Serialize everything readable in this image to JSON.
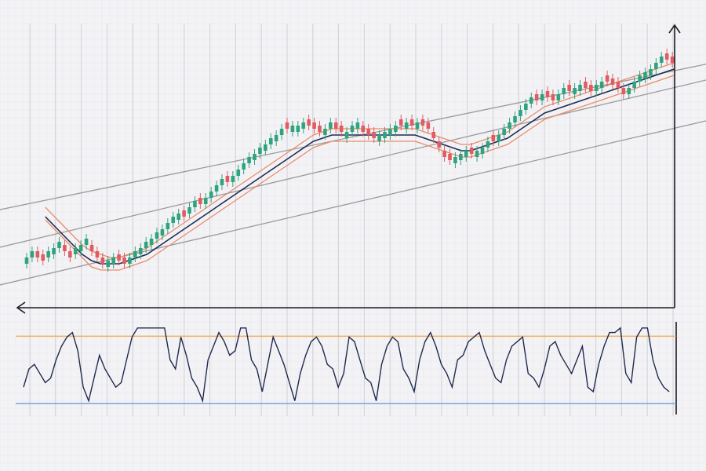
{
  "chart_data": [
    {
      "type": "candlestick",
      "title": "",
      "xlabel": "",
      "ylabel": "",
      "ylim": [
        15,
        100
      ],
      "xlim": [
        0,
        120
      ],
      "grid": true,
      "legend": "none",
      "colors": {
        "up_candle": "#2fa37e",
        "down_candle": "#e15b60",
        "moving_average": "#1f2a4d",
        "envelope": "#e98c6a",
        "channel": "#9a9a9a",
        "grid": "#d0d0d6",
        "background": "#f3f3f6"
      },
      "series": [
        {
          "kind": "ohlc",
          "x": [
            0,
            1,
            2,
            3,
            4,
            5,
            6,
            7,
            8,
            9,
            10,
            11,
            12,
            13,
            14,
            15,
            16,
            17,
            18,
            19,
            20,
            21,
            22,
            23,
            24,
            25,
            26,
            27,
            28,
            29,
            30,
            31,
            32,
            33,
            34,
            35,
            36,
            37,
            38,
            39,
            40,
            41,
            42,
            43,
            44,
            45,
            46,
            47,
            48,
            49,
            50,
            51,
            52,
            53,
            54,
            55,
            56,
            57,
            58,
            59,
            60,
            61,
            62,
            63,
            64,
            65,
            66,
            67,
            68,
            69,
            70,
            71,
            72,
            73,
            74,
            75,
            76,
            77,
            78,
            79,
            80,
            81,
            82,
            83,
            84,
            85,
            86,
            87,
            88,
            89,
            90,
            91,
            92,
            93,
            94,
            95,
            96,
            97,
            98,
            99,
            100,
            101,
            102,
            103,
            104,
            105,
            106,
            107,
            108,
            109,
            110,
            111,
            112,
            113,
            114,
            115,
            116,
            117,
            118,
            119
          ],
          "close": [
            28,
            30,
            28,
            27,
            30,
            31,
            33,
            30,
            28,
            31,
            32,
            34,
            30,
            28,
            26,
            27,
            28,
            27,
            26,
            28,
            30,
            31,
            33,
            34,
            36,
            37,
            39,
            41,
            42,
            41,
            44,
            46,
            45,
            47,
            49,
            51,
            53,
            52,
            54,
            56,
            58,
            60,
            61,
            63,
            64,
            66,
            67,
            69,
            69,
            70,
            70,
            71,
            70,
            69,
            68,
            69,
            71,
            69,
            68,
            68,
            70,
            71,
            68,
            67,
            66,
            67,
            68,
            69,
            70,
            70,
            71,
            70,
            71,
            70,
            69,
            66,
            63,
            60,
            59,
            60,
            61,
            62,
            61,
            62,
            63,
            65,
            65,
            67,
            69,
            71,
            73,
            75,
            77,
            79,
            78,
            80,
            79,
            78,
            80,
            82,
            81,
            82,
            83,
            82,
            81,
            83,
            84,
            84,
            83,
            82,
            80,
            82,
            84,
            86,
            87,
            88,
            90,
            92,
            91,
            90
          ],
          "direction": [
            "up",
            "up",
            "down",
            "down",
            "up",
            "up",
            "up",
            "down",
            "down",
            "up",
            "up",
            "up",
            "down",
            "down",
            "down",
            "up",
            "up",
            "down",
            "down",
            "up",
            "up",
            "up",
            "up",
            "up",
            "up",
            "up",
            "up",
            "up",
            "up",
            "down",
            "up",
            "up",
            "down",
            "up",
            "up",
            "up",
            "up",
            "down",
            "up",
            "up",
            "up",
            "up",
            "up",
            "up",
            "up",
            "up",
            "up",
            "up",
            "down",
            "up",
            "up",
            "up",
            "down",
            "down",
            "down",
            "up",
            "up",
            "down",
            "down",
            "up",
            "up",
            "up",
            "down",
            "down",
            "down",
            "up",
            "up",
            "up",
            "up",
            "down",
            "up",
            "down",
            "up",
            "down",
            "down",
            "down",
            "down",
            "down",
            "down",
            "up",
            "up",
            "up",
            "down",
            "up",
            "up",
            "up",
            "down",
            "up",
            "up",
            "up",
            "up",
            "up",
            "up",
            "up",
            "down",
            "up",
            "down",
            "down",
            "up",
            "up",
            "down",
            "up",
            "up",
            "down",
            "down",
            "up",
            "up",
            "down",
            "down",
            "down",
            "down",
            "up",
            "up",
            "up",
            "up",
            "up",
            "up",
            "up",
            "down",
            "down"
          ]
        },
        {
          "kind": "moving_average",
          "x_start": 4,
          "values": [
            41,
            38,
            35,
            32,
            29,
            27,
            26,
            26,
            26,
            27,
            28,
            29,
            31,
            33,
            35,
            37,
            39,
            41,
            43,
            45,
            47,
            49,
            51,
            53,
            55,
            57,
            59,
            61,
            63,
            65,
            66,
            67,
            67,
            67,
            67,
            67,
            67,
            67,
            67,
            67,
            67,
            66,
            65,
            64,
            63,
            62,
            62,
            63,
            64,
            65,
            66,
            68,
            70,
            72,
            74,
            75,
            76,
            77,
            78,
            79,
            80,
            81,
            82,
            83,
            84,
            85,
            86,
            87,
            88
          ]
        },
        {
          "kind": "envelope",
          "bands": [
            [
              44,
              41,
              38,
              35,
              32,
              30,
              29,
              28,
              28,
              29,
              30,
              31,
              33,
              35,
              37,
              39,
              41,
              43,
              45,
              47,
              49,
              51,
              53,
              55,
              57,
              59,
              61,
              63,
              65,
              67,
              68,
              69,
              69,
              69,
              69,
              69,
              69,
              69,
              69,
              69,
              69,
              68,
              67,
              66,
              65,
              64,
              64,
              65,
              66,
              67,
              68,
              70,
              72,
              74,
              76,
              77,
              78,
              79,
              80,
              81,
              82,
              83,
              84,
              85,
              86,
              87,
              88,
              89,
              90
            ],
            [
              40,
              37,
              34,
              31,
              28,
              25,
              24,
              24,
              24,
              25,
              26,
              27,
              29,
              31,
              33,
              35,
              37,
              39,
              41,
              43,
              45,
              47,
              49,
              51,
              53,
              55,
              57,
              59,
              61,
              63,
              64,
              65,
              65,
              65,
              65,
              65,
              65,
              65,
              65,
              65,
              65,
              64,
              63,
              62,
              61,
              60,
              60,
              61,
              62,
              63,
              64,
              66,
              68,
              70,
              72,
              73,
              74,
              75,
              76,
              77,
              78,
              79,
              80,
              81,
              82,
              83,
              84,
              85,
              86
            ]
          ]
        },
        {
          "kind": "trend_channel",
          "lines": [
            {
              "x": [
                -5,
                127
              ],
              "y": [
                43,
                90
              ]
            },
            {
              "x": [
                -5,
                127
              ],
              "y": [
                31,
                85
              ]
            },
            {
              "x": [
                -5,
                127
              ],
              "y": [
                19,
                72
              ]
            }
          ]
        }
      ]
    },
    {
      "type": "line",
      "title": "",
      "xlabel": "",
      "ylabel": "",
      "ylim": [
        0,
        100
      ],
      "xlim": [
        0,
        120
      ],
      "grid": true,
      "legend": "none",
      "reference_lines": [
        {
          "y": 86,
          "color": "#f0a84a"
        },
        {
          "y": 12,
          "color": "#6f9bd6"
        }
      ],
      "series": [
        {
          "color": "#1f2a4d",
          "x": [
            0,
            1,
            2,
            3,
            4,
            5,
            6,
            7,
            8,
            9,
            10,
            11,
            12,
            13,
            14,
            15,
            16,
            17,
            18,
            19,
            20,
            21,
            22,
            23,
            24,
            25,
            26,
            27,
            28,
            29,
            30,
            31,
            32,
            33,
            34,
            35,
            36,
            37,
            38,
            39,
            40,
            41,
            42,
            43,
            44,
            45,
            46,
            47,
            48,
            49,
            50,
            51,
            52,
            53,
            54,
            55,
            56,
            57,
            58,
            59,
            60,
            61,
            62,
            63,
            64,
            65,
            66,
            67,
            68,
            69,
            70,
            71,
            72,
            73,
            74,
            75,
            76,
            77,
            78,
            79,
            80,
            81,
            82,
            83,
            84,
            85,
            86,
            87,
            88,
            89,
            90,
            91,
            92,
            93,
            94,
            95,
            96,
            97,
            98,
            99,
            100,
            101,
            102,
            103,
            104,
            105,
            106,
            107,
            108,
            109,
            110,
            111,
            112,
            113,
            114,
            115,
            116,
            117,
            118,
            119
          ],
          "values": [
            30,
            50,
            55,
            45,
            35,
            40,
            60,
            75,
            85,
            90,
            70,
            30,
            15,
            40,
            65,
            50,
            40,
            30,
            35,
            60,
            85,
            95,
            95,
            95,
            95,
            95,
            95,
            60,
            50,
            85,
            65,
            40,
            30,
            15,
            60,
            75,
            90,
            80,
            65,
            70,
            95,
            95,
            60,
            50,
            25,
            55,
            85,
            70,
            55,
            35,
            15,
            45,
            65,
            80,
            85,
            75,
            55,
            50,
            30,
            45,
            85,
            80,
            60,
            40,
            35,
            15,
            55,
            75,
            85,
            80,
            50,
            40,
            25,
            60,
            80,
            90,
            75,
            55,
            45,
            30,
            60,
            65,
            80,
            85,
            90,
            70,
            55,
            40,
            35,
            60,
            75,
            80,
            85,
            45,
            40,
            30,
            50,
            75,
            80,
            65,
            55,
            45,
            60,
            75,
            30,
            25,
            55,
            75,
            90,
            90,
            95,
            45,
            35,
            85,
            95,
            95,
            60,
            40,
            30,
            25
          ]
        }
      ]
    }
  ]
}
